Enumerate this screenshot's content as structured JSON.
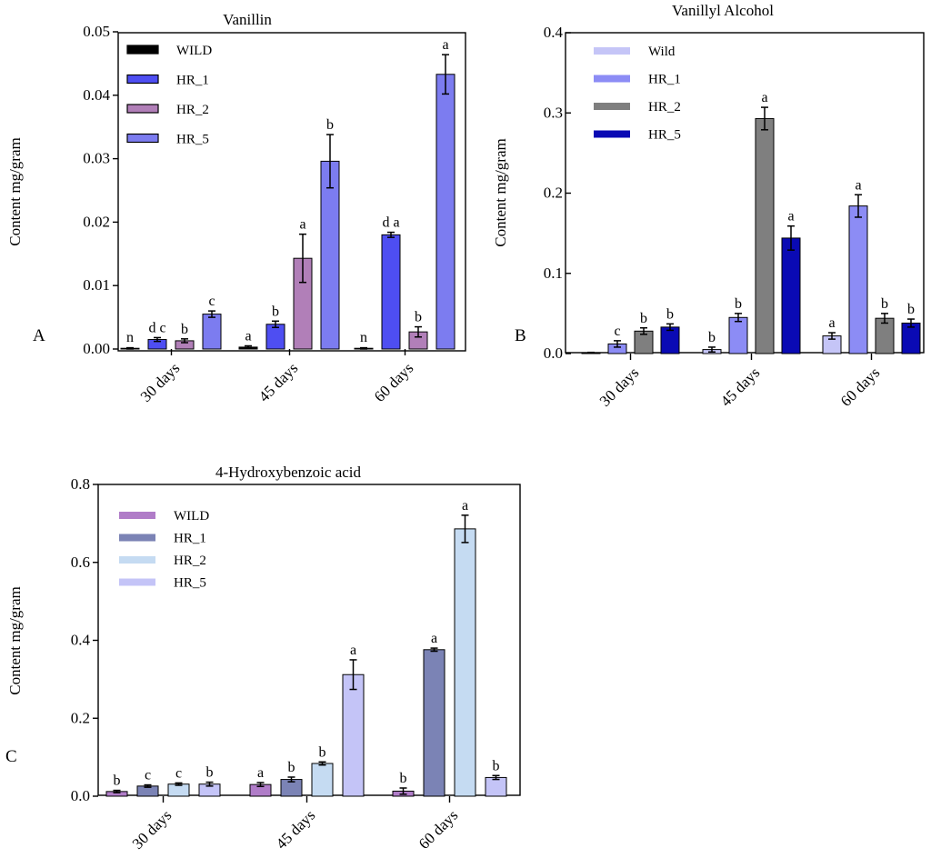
{
  "chart_data": [
    {
      "type": "bar",
      "panel": "A",
      "title": "Vanillin",
      "xlabel": "",
      "ylabel": "Content mg/gram",
      "ylim": [
        0,
        0.05
      ],
      "yticks": [
        "0.00",
        "0.01",
        "0.02",
        "0.03",
        "0.04",
        "0.05"
      ],
      "categories": [
        "30 days",
        "45 days",
        "60 days"
      ],
      "legend_position": "top-left",
      "series": [
        {
          "name": "WILD",
          "color": "#000000",
          "values": [
            0.0001,
            0.0003,
            0.0001
          ],
          "errors": [
            0.0001,
            0.0002,
            0.0001
          ],
          "labels": [
            "n",
            "a",
            "n"
          ]
        },
        {
          "name": "HR_1",
          "color": "#4e4ef2",
          "values": [
            0.0015,
            0.0039,
            0.018
          ],
          "errors": [
            0.0003,
            0.0005,
            0.0004
          ],
          "labels": [
            "d c",
            "b",
            "d a"
          ]
        },
        {
          "name": "HR_2",
          "color": "#b17fb8",
          "values": [
            0.0013,
            0.0143,
            0.0027
          ],
          "errors": [
            0.0003,
            0.0038,
            0.0008
          ],
          "labels": [
            "b",
            "a",
            "b"
          ]
        },
        {
          "name": "HR_5",
          "color": "#7c7cf0",
          "values": [
            0.0055,
            0.0296,
            0.0433
          ],
          "errors": [
            0.0005,
            0.0042,
            0.0031
          ],
          "labels": [
            "c",
            "b",
            "a"
          ]
        }
      ]
    },
    {
      "type": "bar",
      "panel": "B",
      "title": "Vanillyl  Alcohol",
      "xlabel": "",
      "ylabel": "Content mg/gram",
      "ylim": [
        0,
        0.4
      ],
      "yticks": [
        "0.0",
        "0.1",
        "0.2",
        "0.3",
        "0.4"
      ],
      "categories": [
        "30 days",
        "45 days",
        "60 days"
      ],
      "legend_position": "top-left",
      "series": [
        {
          "name": "Wild",
          "color": "#c5c5f7",
          "values": [
            0.001,
            0.005,
            0.022
          ],
          "errors": [
            0.0005,
            0.003,
            0.004
          ],
          "labels": [
            "",
            "b",
            "a"
          ]
        },
        {
          "name": "HR_1",
          "color": "#8c8cf5",
          "values": [
            0.012,
            0.045,
            0.184
          ],
          "errors": [
            0.004,
            0.005,
            0.014
          ],
          "labels": [
            "c",
            "b",
            "a"
          ]
        },
        {
          "name": "HR_2",
          "color": "#7f7f7f",
          "values": [
            0.028,
            0.293,
            0.044
          ],
          "errors": [
            0.004,
            0.014,
            0.006
          ],
          "labels": [
            "b",
            "a",
            "b"
          ]
        },
        {
          "name": "HR_5",
          "color": "#0a0ab4",
          "values": [
            0.033,
            0.144,
            0.038
          ],
          "errors": [
            0.004,
            0.015,
            0.005
          ],
          "labels": [
            "b",
            "a",
            "b"
          ]
        }
      ]
    },
    {
      "type": "bar",
      "panel": "C",
      "title": "4-Hydroxybenzoic acid",
      "xlabel": "",
      "ylabel": "Content mg/gram",
      "ylim": [
        0,
        0.8
      ],
      "yticks": [
        "0.0",
        "0.2",
        "0.4",
        "0.6",
        "0.8"
      ],
      "categories": [
        "30 days",
        "45 days",
        "60 days"
      ],
      "legend_position": "top-left",
      "series": [
        {
          "name": "WILD",
          "color": "#b07cc8",
          "values": [
            0.012,
            0.03,
            0.013
          ],
          "errors": [
            0.003,
            0.005,
            0.008
          ],
          "labels": [
            "b",
            "a",
            "b"
          ]
        },
        {
          "name": "HR_1",
          "color": "#7b83b5",
          "values": [
            0.026,
            0.043,
            0.376
          ],
          "errors": [
            0.003,
            0.006,
            0.004
          ],
          "labels": [
            "c",
            "b",
            "a"
          ]
        },
        {
          "name": "HR_2",
          "color": "#c5dbf2",
          "values": [
            0.031,
            0.084,
            0.686
          ],
          "errors": [
            0.003,
            0.004,
            0.035
          ],
          "labels": [
            "c",
            "b",
            "a"
          ]
        },
        {
          "name": "HR_5",
          "color": "#c4c4f7",
          "values": [
            0.031,
            0.312,
            0.048
          ],
          "errors": [
            0.005,
            0.038,
            0.005
          ],
          "labels": [
            "b",
            "a",
            "b"
          ]
        }
      ]
    }
  ]
}
